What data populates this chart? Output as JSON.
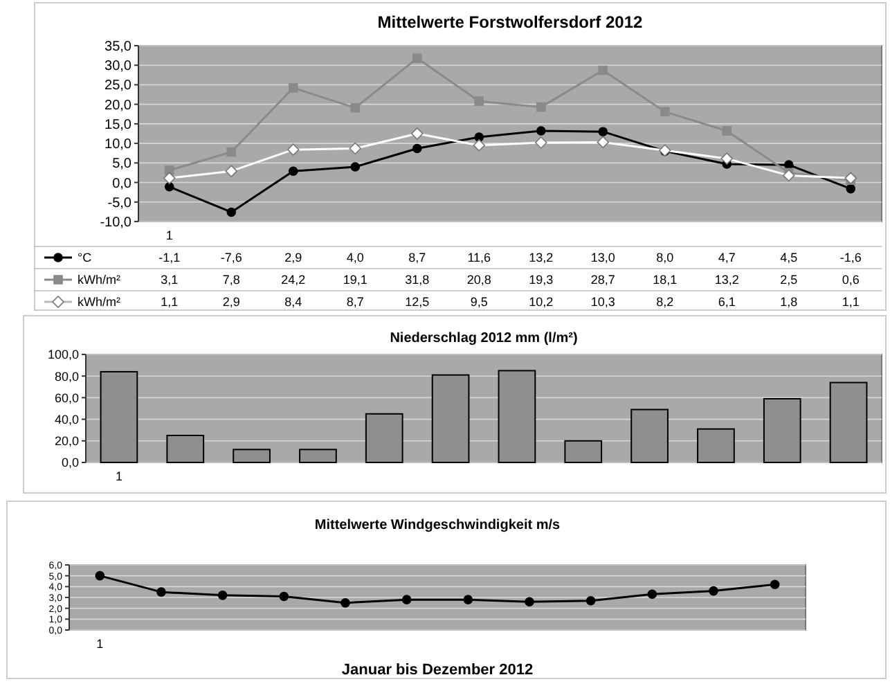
{
  "chart_data": [
    {
      "type": "line",
      "title": "Mittelwerte Forstwolfersdorf 2012",
      "categories": [
        "1",
        null,
        null,
        null,
        null,
        null,
        null,
        null,
        null,
        null,
        null,
        null
      ],
      "ylim": [
        -10,
        35
      ],
      "yticks": [
        {
          "value": -10,
          "label": "-10,0"
        },
        {
          "value": -5,
          "label": "-5,0"
        },
        {
          "value": 0,
          "label": "0,0"
        },
        {
          "value": 5,
          "label": "5,0"
        },
        {
          "value": 10,
          "label": "10,0"
        },
        {
          "value": 15,
          "label": "15,0"
        },
        {
          "value": 20,
          "label": "20,0"
        },
        {
          "value": 25,
          "label": "25,0"
        },
        {
          "value": 30,
          "label": "30,0"
        },
        {
          "value": 35,
          "label": "35,0"
        }
      ],
      "grid": "y",
      "legend": "bottom",
      "line_style": "solid",
      "series": [
        {
          "name": "°C",
          "color": "#000000",
          "marker": "circle",
          "values": [
            -1.1,
            -7.6,
            2.9,
            4.0,
            8.7,
            11.6,
            13.2,
            13.0,
            8.0,
            4.7,
            4.5,
            -1.6
          ],
          "value_labels": [
            "-1,1",
            "-7,6",
            "2,9",
            "4,0",
            "8,7",
            "11,6",
            "13,2",
            "13,0",
            "8,0",
            "4,7",
            "4,5",
            "-1,6"
          ]
        },
        {
          "name": "kWh/m²",
          "color": "#8a8a8a",
          "marker": "square",
          "values": [
            3.1,
            7.8,
            24.2,
            19.1,
            31.8,
            20.8,
            19.3,
            28.7,
            18.1,
            13.2,
            2.5,
            0.6
          ],
          "value_labels": [
            "3,1",
            "7,8",
            "24,2",
            "19,1",
            "31,8",
            "20,8",
            "19,3",
            "28,7",
            "18,1",
            "13,2",
            "2,5",
            "0,6"
          ]
        },
        {
          "name": "kWh/m²",
          "color": "#ffffff",
          "marker": "diamond",
          "values": [
            1.1,
            2.9,
            8.4,
            8.7,
            12.5,
            9.5,
            10.2,
            10.3,
            8.2,
            6.1,
            1.8,
            1.1
          ],
          "value_labels": [
            "1,1",
            "2,9",
            "8,4",
            "8,7",
            "12,5",
            "9,5",
            "10,2",
            "10,3",
            "8,2",
            "6,1",
            "1,8",
            "1,1"
          ]
        }
      ]
    },
    {
      "type": "bar",
      "title": "Niederschlag 2012 mm (l/m²)",
      "categories": [
        "1",
        null,
        null,
        null,
        null,
        null,
        null,
        null,
        null,
        null,
        null,
        null
      ],
      "ylim": [
        0,
        100
      ],
      "yticks": [
        {
          "value": 0,
          "label": "0,0"
        },
        {
          "value": 20,
          "label": "20,0"
        },
        {
          "value": 40,
          "label": "40,0"
        },
        {
          "value": 60,
          "label": "60,0"
        },
        {
          "value": 80,
          "label": "80,0"
        },
        {
          "value": 100,
          "label": "100,0"
        }
      ],
      "grid": "y",
      "color": "#8f8f8f",
      "values": [
        84,
        25,
        12,
        12,
        45,
        81,
        85,
        20,
        49,
        31,
        59,
        74
      ]
    },
    {
      "type": "line",
      "title": "Mittelwerte Windgeschwindigkeit m/s",
      "xlabel": "Januar bis Dezember 2012",
      "categories": [
        "1",
        null,
        null,
        null,
        null,
        null,
        null,
        null,
        null,
        null,
        null,
        null
      ],
      "ylim": [
        0,
        6
      ],
      "yticks": [
        {
          "value": 0,
          "label": "0,0"
        },
        {
          "value": 1,
          "label": "1,0"
        },
        {
          "value": 2,
          "label": "2,0"
        },
        {
          "value": 3,
          "label": "3,0"
        },
        {
          "value": 4,
          "label": "4,0"
        },
        {
          "value": 5,
          "label": "5,0"
        },
        {
          "value": 6,
          "label": "6,0"
        }
      ],
      "grid": "y",
      "marker": "circle",
      "line_style": "solid",
      "series": [
        {
          "color": "#000000",
          "values": [
            5.0,
            3.5,
            3.2,
            3.1,
            2.5,
            2.8,
            2.8,
            2.6,
            2.7,
            3.3,
            3.6,
            4.2
          ]
        }
      ]
    }
  ]
}
